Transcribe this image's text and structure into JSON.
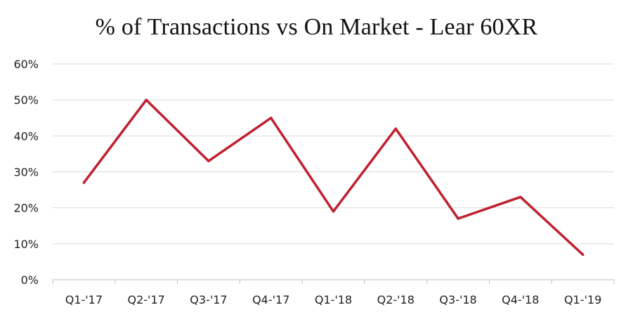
{
  "chart_data": {
    "type": "line",
    "title": "% of Transactions vs On Market - Lear 60XR",
    "xlabel": "",
    "ylabel": "",
    "categories": [
      "Q1-'17",
      "Q2-'17",
      "Q3-'17",
      "Q4-'17",
      "Q1-'18",
      "Q2-'18",
      "Q3-'18",
      "Q4-'18",
      "Q1-'19"
    ],
    "series": [
      {
        "values": [
          27,
          50,
          33,
          45,
          19,
          42,
          17,
          23,
          7
        ]
      }
    ],
    "ylim": [
      0,
      60
    ],
    "yticks": [
      0,
      10,
      20,
      30,
      40,
      50,
      60
    ],
    "ytick_labels": [
      "0%",
      "10%",
      "20%",
      "30%",
      "40%",
      "50%",
      "60%"
    ],
    "grid": true,
    "legend": "none",
    "colors": {
      "line": "#c0202f",
      "grid": "#d9d9d9",
      "axis": "#bfbfbf",
      "text": "#222222"
    }
  }
}
